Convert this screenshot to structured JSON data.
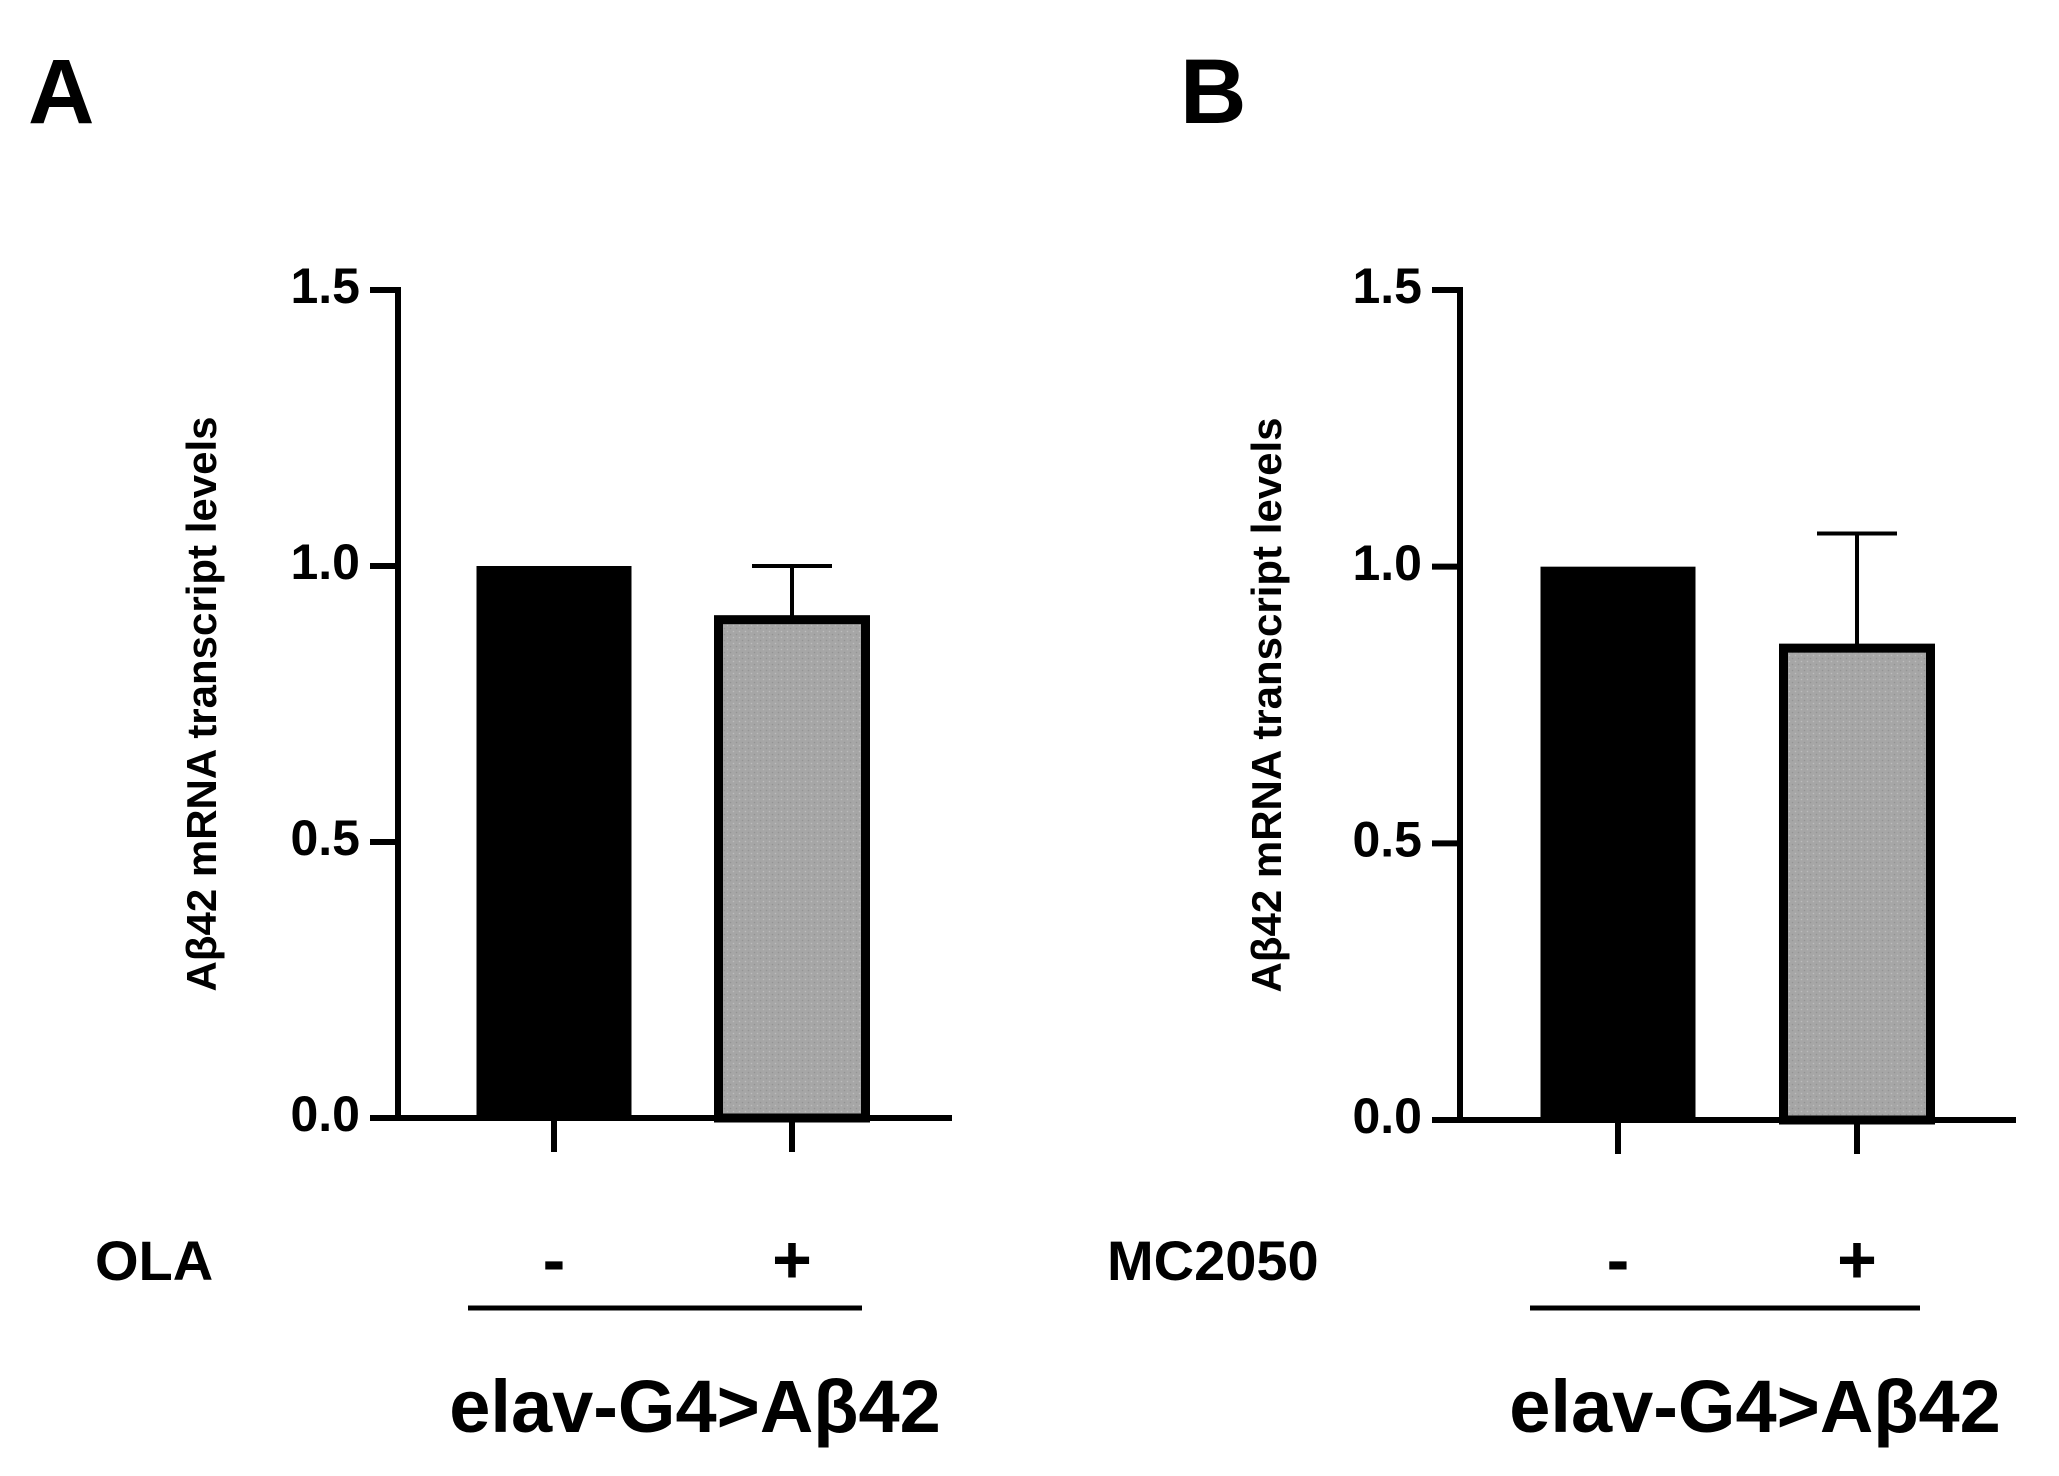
{
  "chart_data": [
    {
      "panel": "A",
      "type": "bar",
      "ylabel": "Aβ42 mRNA transcript levels",
      "ylim": [
        0,
        1.5
      ],
      "yticks": [
        "0.0",
        "0.5",
        "1.0",
        "1.5"
      ],
      "treatment_label": "OLA",
      "categories": [
        "-",
        "+"
      ],
      "values": [
        1.0,
        0.91
      ],
      "error_upper": [
        null,
        1.0
      ],
      "bar_colors": [
        "#000000",
        "#a6a6a6"
      ],
      "group_label": "elav-G4>Aβ42",
      "grid": false
    },
    {
      "panel": "B",
      "type": "bar",
      "ylabel": "Aβ42 mRNA transcript levels",
      "ylim": [
        0,
        1.5
      ],
      "yticks": [
        "0.0",
        "0.5",
        "1.0",
        "1.5"
      ],
      "treatment_label": "MC2050",
      "categories": [
        "-",
        "+"
      ],
      "values": [
        1.0,
        0.86
      ],
      "error_upper": [
        null,
        1.06
      ],
      "bar_colors": [
        "#000000",
        "#a6a6a6"
      ],
      "group_label": "elav-G4>Aβ42",
      "grid": false
    }
  ]
}
